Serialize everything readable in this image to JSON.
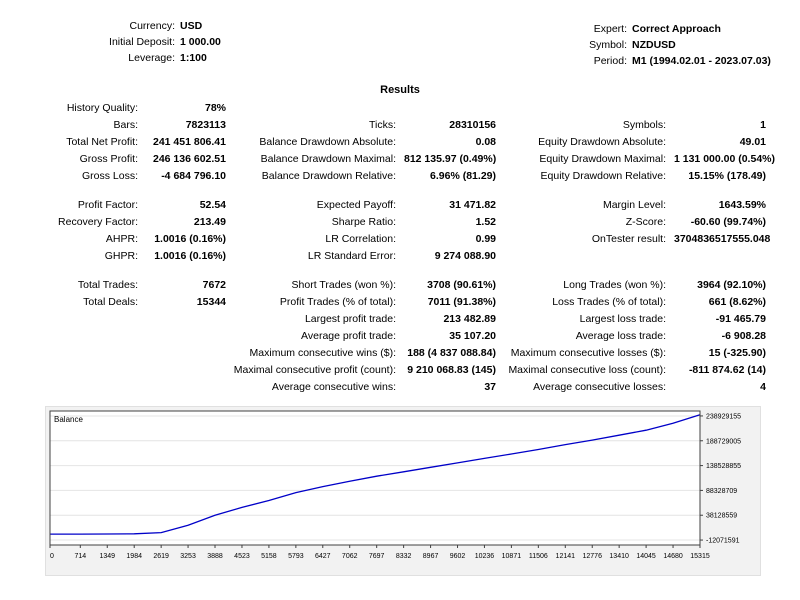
{
  "header": {
    "left": [
      {
        "label": "Currency:",
        "value": "USD"
      },
      {
        "label": "Initial Deposit:",
        "value": "1 000.00"
      },
      {
        "label": "Leverage:",
        "value": "1:100"
      }
    ],
    "right": [
      {
        "label": "Expert:",
        "value": "Correct Approach"
      },
      {
        "label": "Symbol:",
        "value": "NZDUSD"
      },
      {
        "label": "Period:",
        "value": "M1 (1994.02.01 - 2023.07.03)"
      }
    ]
  },
  "results_title": "Results",
  "stats": {
    "groups": [
      [
        [
          "History Quality:",
          "78%",
          "",
          "",
          "",
          ""
        ],
        [
          "Bars:",
          "7823113",
          "Ticks:",
          "28310156",
          "Symbols:",
          "1"
        ],
        [
          "Total Net Profit:",
          "241 451 806.41",
          "Balance Drawdown Absolute:",
          "0.08",
          "Equity Drawdown Absolute:",
          "49.01"
        ],
        [
          "Gross Profit:",
          "246 136 602.51",
          "Balance Drawdown Maximal:",
          "812 135.97 (0.49%)",
          "Equity Drawdown Maximal:",
          "1 131 000.00 (0.54%)"
        ],
        [
          "Gross Loss:",
          "-4 684 796.10",
          "Balance Drawdown Relative:",
          "6.96% (81.29)",
          "Equity Drawdown Relative:",
          "15.15% (178.49)"
        ]
      ],
      [
        [
          "Profit Factor:",
          "52.54",
          "Expected Payoff:",
          "31 471.82",
          "Margin Level:",
          "1643.59%"
        ],
        [
          "Recovery Factor:",
          "213.49",
          "Sharpe Ratio:",
          "1.52",
          "Z-Score:",
          "-60.60 (99.74%)"
        ],
        [
          "AHPR:",
          "1.0016 (0.16%)",
          "LR Correlation:",
          "0.99",
          "OnTester result:",
          "3704836517555.048"
        ],
        [
          "GHPR:",
          "1.0016 (0.16%)",
          "LR Standard Error:",
          "9 274 088.90",
          "",
          ""
        ]
      ],
      [
        [
          "Total Trades:",
          "7672",
          "Short Trades (won %):",
          "3708 (90.61%)",
          "Long Trades (won %):",
          "3964 (92.10%)"
        ],
        [
          "Total Deals:",
          "15344",
          "Profit Trades (% of total):",
          "7011 (91.38%)",
          "Loss Trades (% of total):",
          "661 (8.62%)"
        ],
        [
          "",
          "",
          "Largest profit trade:",
          "213 482.89",
          "Largest loss trade:",
          "-91 465.79"
        ],
        [
          "",
          "",
          "Average profit trade:",
          "35 107.20",
          "Average loss trade:",
          "-6 908.28"
        ],
        [
          "",
          "",
          "Maximum consecutive wins ($):",
          "188 (4 837 088.84)",
          "Maximum consecutive losses ($):",
          "15 (-325.90)"
        ],
        [
          "",
          "",
          "Maximal consecutive profit (count):",
          "9 210 068.83 (145)",
          "Maximal consecutive loss (count):",
          "-811 874.62 (14)"
        ],
        [
          "",
          "",
          "Average consecutive wins:",
          "37",
          "Average consecutive losses:",
          "4"
        ]
      ]
    ]
  },
  "chart_data": {
    "type": "line",
    "title": "Balance",
    "xlabel": "",
    "ylabel": "",
    "xlim": [
      0,
      15315
    ],
    "ylim": [
      -22071591,
      248929155
    ],
    "grid": true,
    "line_color": "#0000C8",
    "x_label_values": [
      0,
      714,
      1349,
      1984,
      2619,
      3253,
      3888,
      4523,
      5158,
      5793,
      6427,
      7062,
      7697,
      8332,
      8967,
      9602,
      10236,
      10871,
      11506,
      12141,
      12776,
      13410,
      14045,
      14680,
      15315
    ],
    "y_ticks": [
      {
        "value": 238929155,
        "label": "238929155"
      },
      {
        "value": 188729005,
        "label": "188729005"
      },
      {
        "value": 138528855,
        "label": "138528855"
      },
      {
        "value": 88328709,
        "label": "88328709"
      },
      {
        "value": 38128559,
        "label": "38128559"
      },
      {
        "value": -12071591,
        "label": "-12071591"
      }
    ],
    "series": [
      {
        "name": "Balance",
        "x": [
          0,
          714,
          1349,
          1984,
          2619,
          3253,
          3888,
          4523,
          5158,
          5793,
          6427,
          7062,
          7697,
          8332,
          8967,
          9602,
          10236,
          10871,
          11506,
          12141,
          12776,
          13410,
          14045,
          14680,
          15315
        ],
        "values": [
          1000,
          30000,
          120000,
          600000,
          3000000,
          18000000,
          38000000,
          54000000,
          68000000,
          84000000,
          96000000,
          107000000,
          117000000,
          126000000,
          135000000,
          144000000,
          153000000,
          162000000,
          171000000,
          181000000,
          190000000,
          200000000,
          210000000,
          224000000,
          241451806
        ]
      }
    ]
  }
}
